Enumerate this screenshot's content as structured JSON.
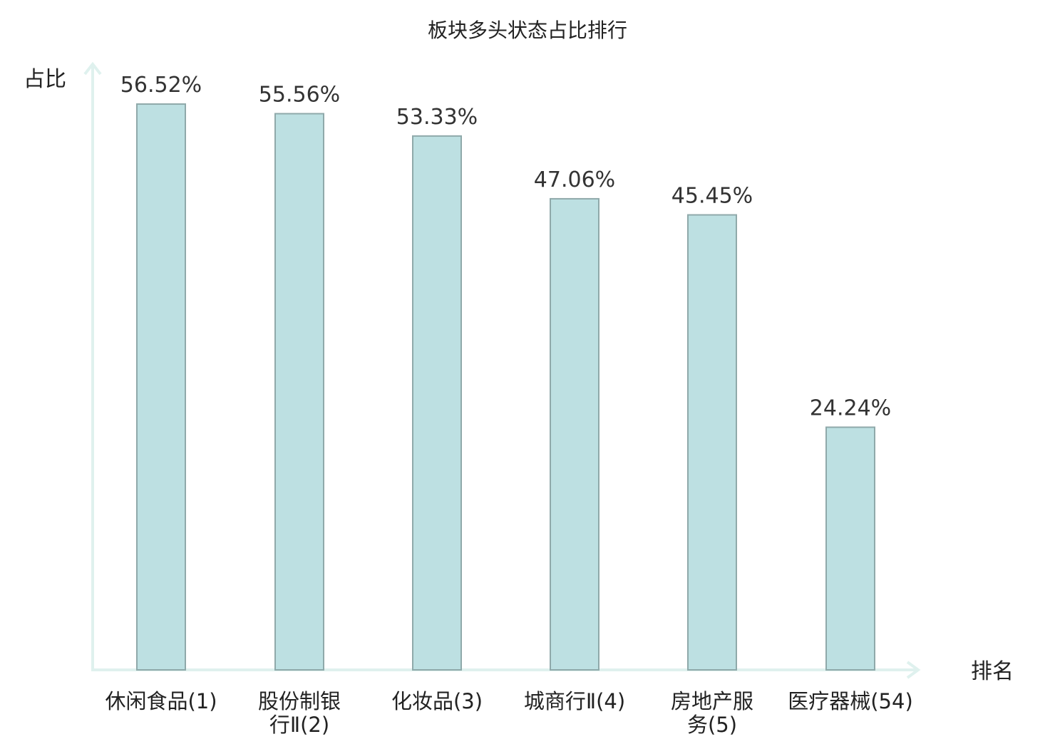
{
  "chart_data": {
    "type": "bar",
    "title": "板块多头状态占比排行",
    "ylabel": "占比",
    "xlabel": "排名",
    "categories": [
      [
        "休闲食品(1)"
      ],
      [
        "股份制银",
        "行Ⅱ(2)"
      ],
      [
        "化妆品(3)"
      ],
      [
        "城商行Ⅱ(4)"
      ],
      [
        "房地产服",
        "务(5)"
      ],
      [
        "医疗器械(54)"
      ]
    ],
    "values": [
      56.52,
      55.56,
      53.33,
      47.06,
      45.45,
      24.24
    ],
    "value_labels": [
      "56.52%",
      "55.56%",
      "53.33%",
      "47.06%",
      "45.45%",
      "24.24%"
    ],
    "highlight_index": 5,
    "ylim": [
      0,
      63
    ],
    "grid": false,
    "colors": {
      "bar_fill": "#bde0e2",
      "bar_stroke": "#8fa9aa",
      "axis": "#dff1ee",
      "highlight_text": "#e0191c",
      "text": "#222222"
    }
  }
}
